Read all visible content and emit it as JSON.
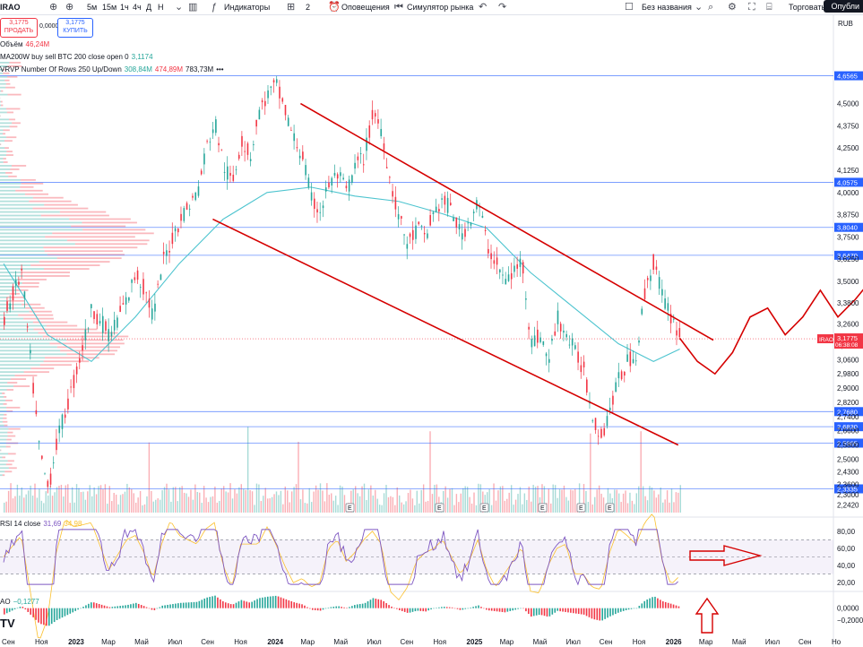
{
  "toolbar": {
    "symbol": "IRAO",
    "intervals": [
      "5м",
      "15м",
      "1ч",
      "4ч",
      "Д",
      "Н"
    ],
    "indicators_label": "Индикаторы",
    "layout_count": "2",
    "alerts_label": "Оповещения",
    "replay_label": "Симулятор рынка",
    "layout_name": "Без названия",
    "trade_label": "Торговать",
    "publish_label": "Опубли"
  },
  "trade": {
    "sell_price": "3,1775",
    "sell_label": "ПРОДАТЬ",
    "spread": "0,0000",
    "buy_price": "3,1775",
    "buy_label": "КУПИТЬ"
  },
  "legends": {
    "volume_name": "Объём",
    "volume_value": "46,24M",
    "ma_name": "MA200W buy sell BTC 200 close open 0",
    "ma_value": "3,1174",
    "vrvp_name": "VRVP Number Of Rows 250 Up/Down",
    "vrvp_up": "308,84M",
    "vrvp_down": "474,89M",
    "vrvp_total": "783,73M",
    "rsi_name": "RSI 14 close",
    "rsi_value": "31,69",
    "rsi_ma": "34,98",
    "ao_name": "AO",
    "ao_value": "−0,1277",
    "currency": "RUB",
    "logo_text": "TV"
  },
  "chart_data": [
    {
      "type": "candlestick",
      "symbol": "IRAO",
      "x_ticks": [
        "Сен",
        "Ноя",
        "2023",
        "Мар",
        "Май",
        "Июл",
        "Сен",
        "Ноя",
        "2024",
        "Мар",
        "Май",
        "Июл",
        "Сен",
        "Ноя",
        "2025",
        "Мар",
        "Май",
        "Июл",
        "Сен",
        "Ноя",
        "2026",
        "Мар",
        "Май",
        "Июл",
        "Сен",
        "Но"
      ],
      "y_ticks": [
        "4,5000",
        "4,3750",
        "4,2500",
        "4,1250",
        "4,0000",
        "3,8750",
        "3,7500",
        "3,6250",
        "3,5000",
        "3,3800",
        "3,2600",
        "3,1400",
        "3,0600",
        "2,9800",
        "2,9000",
        "2,8200",
        "2,7400",
        "2,6600",
        "2,5800",
        "2,5000",
        "2,4300",
        "2,3600",
        "2,3000",
        "2,2420"
      ],
      "ylim": [
        2.2,
        4.75
      ],
      "price_levels": [
        {
          "value": 4.6565,
          "label": "4,6565"
        },
        {
          "value": 4.0575,
          "label": "4,0575"
        },
        {
          "value": 3.804,
          "label": "3,8040"
        },
        {
          "value": 3.647,
          "label": "3,6470"
        },
        {
          "value": 2.768,
          "label": "2,7680"
        },
        {
          "value": 2.683,
          "label": "2,6830"
        },
        {
          "value": 2.5905,
          "label": "2,5905"
        },
        {
          "value": 2.3335,
          "label": "2,3335"
        }
      ],
      "last_price": {
        "value": 3.1775,
        "label": "3,1775",
        "countdown": "06:38:08",
        "symbol": "IRAO"
      },
      "price_path": [
        [
          0,
          3.3
        ],
        [
          2,
          3.55
        ],
        [
          4,
          2.55
        ],
        [
          5,
          2.33
        ],
        [
          6,
          2.6
        ],
        [
          8,
          2.95
        ],
        [
          10,
          3.35
        ],
        [
          12,
          3.2
        ],
        [
          14,
          3.4
        ],
        [
          15,
          3.55
        ],
        [
          16,
          3.45
        ],
        [
          17,
          3.3
        ],
        [
          18,
          3.6
        ],
        [
          20,
          3.85
        ],
        [
          22,
          4.0
        ],
        [
          23,
          4.25
        ],
        [
          24,
          4.4
        ],
        [
          25,
          4.15
        ],
        [
          26,
          4.05
        ],
        [
          27,
          4.3
        ],
        [
          28,
          4.2
        ],
        [
          29,
          4.45
        ],
        [
          30,
          4.55
        ],
        [
          31,
          4.6
        ],
        [
          32,
          4.45
        ],
        [
          33,
          4.3
        ],
        [
          34,
          4.2
        ],
        [
          35,
          3.95
        ],
        [
          36,
          3.9
        ],
        [
          37,
          4.05
        ],
        [
          38,
          4.1
        ],
        [
          39,
          4.0
        ],
        [
          40,
          4.15
        ],
        [
          41,
          4.2
        ],
        [
          42,
          4.45
        ],
        [
          43,
          4.35
        ],
        [
          44,
          4.05
        ],
        [
          45,
          3.85
        ],
        [
          46,
          3.7
        ],
        [
          47,
          3.8
        ],
        [
          48,
          3.75
        ],
        [
          49,
          3.9
        ],
        [
          50,
          3.95
        ],
        [
          51,
          3.9
        ],
        [
          52,
          3.75
        ],
        [
          53,
          3.85
        ],
        [
          54,
          3.95
        ],
        [
          55,
          3.7
        ],
        [
          56,
          3.6
        ],
        [
          57,
          3.5
        ],
        [
          58,
          3.55
        ],
        [
          59,
          3.62
        ],
        [
          60,
          3.15
        ],
        [
          61,
          3.2
        ],
        [
          62,
          3.05
        ],
        [
          63,
          3.3
        ],
        [
          64,
          3.2
        ],
        [
          65,
          3.1
        ],
        [
          66,
          3.0
        ],
        [
          67,
          2.75
        ],
        [
          68,
          2.62
        ],
        [
          69,
          2.8
        ],
        [
          70,
          2.95
        ],
        [
          71,
          3.05
        ],
        [
          72,
          3.1
        ],
        [
          73,
          3.45
        ],
        [
          74,
          3.62
        ],
        [
          75,
          3.4
        ],
        [
          76,
          3.3
        ],
        [
          77,
          3.18
        ]
      ],
      "ma200_path": [
        [
          0,
          3.6
        ],
        [
          5,
          3.2
        ],
        [
          10,
          3.05
        ],
        [
          15,
          3.3
        ],
        [
          20,
          3.6
        ],
        [
          25,
          3.85
        ],
        [
          30,
          4.0
        ],
        [
          35,
          4.03
        ],
        [
          40,
          3.98
        ],
        [
          45,
          3.95
        ],
        [
          50,
          3.88
        ],
        [
          55,
          3.8
        ],
        [
          60,
          3.55
        ],
        [
          65,
          3.35
        ],
        [
          70,
          3.15
        ],
        [
          74,
          3.05
        ],
        [
          77,
          3.12
        ]
      ],
      "channel_upper": [
        [
          43,
          4.5
        ],
        [
          90,
          3.17
        ]
      ],
      "channel_lower": [
        [
          33,
          3.85
        ],
        [
          86,
          2.58
        ]
      ],
      "forecast_path": [
        [
          77,
          3.18
        ],
        [
          79,
          3.05
        ],
        [
          81,
          2.98
        ],
        [
          83,
          3.1
        ],
        [
          85,
          3.3
        ],
        [
          87,
          3.35
        ],
        [
          89,
          3.2
        ],
        [
          91,
          3.3
        ],
        [
          93,
          3.45
        ],
        [
          95,
          3.3
        ],
        [
          97,
          3.4
        ],
        [
          99,
          3.52
        ],
        [
          101,
          3.38
        ],
        [
          103,
          3.3
        ],
        [
          105,
          3.25
        ],
        [
          107,
          3.4
        ],
        [
          109,
          3.5
        ],
        [
          111,
          3.3
        ],
        [
          113,
          3.25
        ],
        [
          115,
          3.38
        ],
        [
          117,
          3.45
        ],
        [
          119,
          3.55
        ],
        [
          121,
          3.63
        ]
      ]
    },
    {
      "type": "line",
      "name": "RSI",
      "y_ticks": [
        "80,00",
        "60,00",
        "40,00",
        "20,00"
      ],
      "ylim": [
        15,
        85
      ],
      "bands": [
        70,
        50,
        30
      ]
    },
    {
      "type": "bar",
      "name": "AO",
      "y_ticks": [
        "0,0000",
        "−0,2000"
      ],
      "ylim": [
        -0.35,
        0.25
      ]
    }
  ]
}
